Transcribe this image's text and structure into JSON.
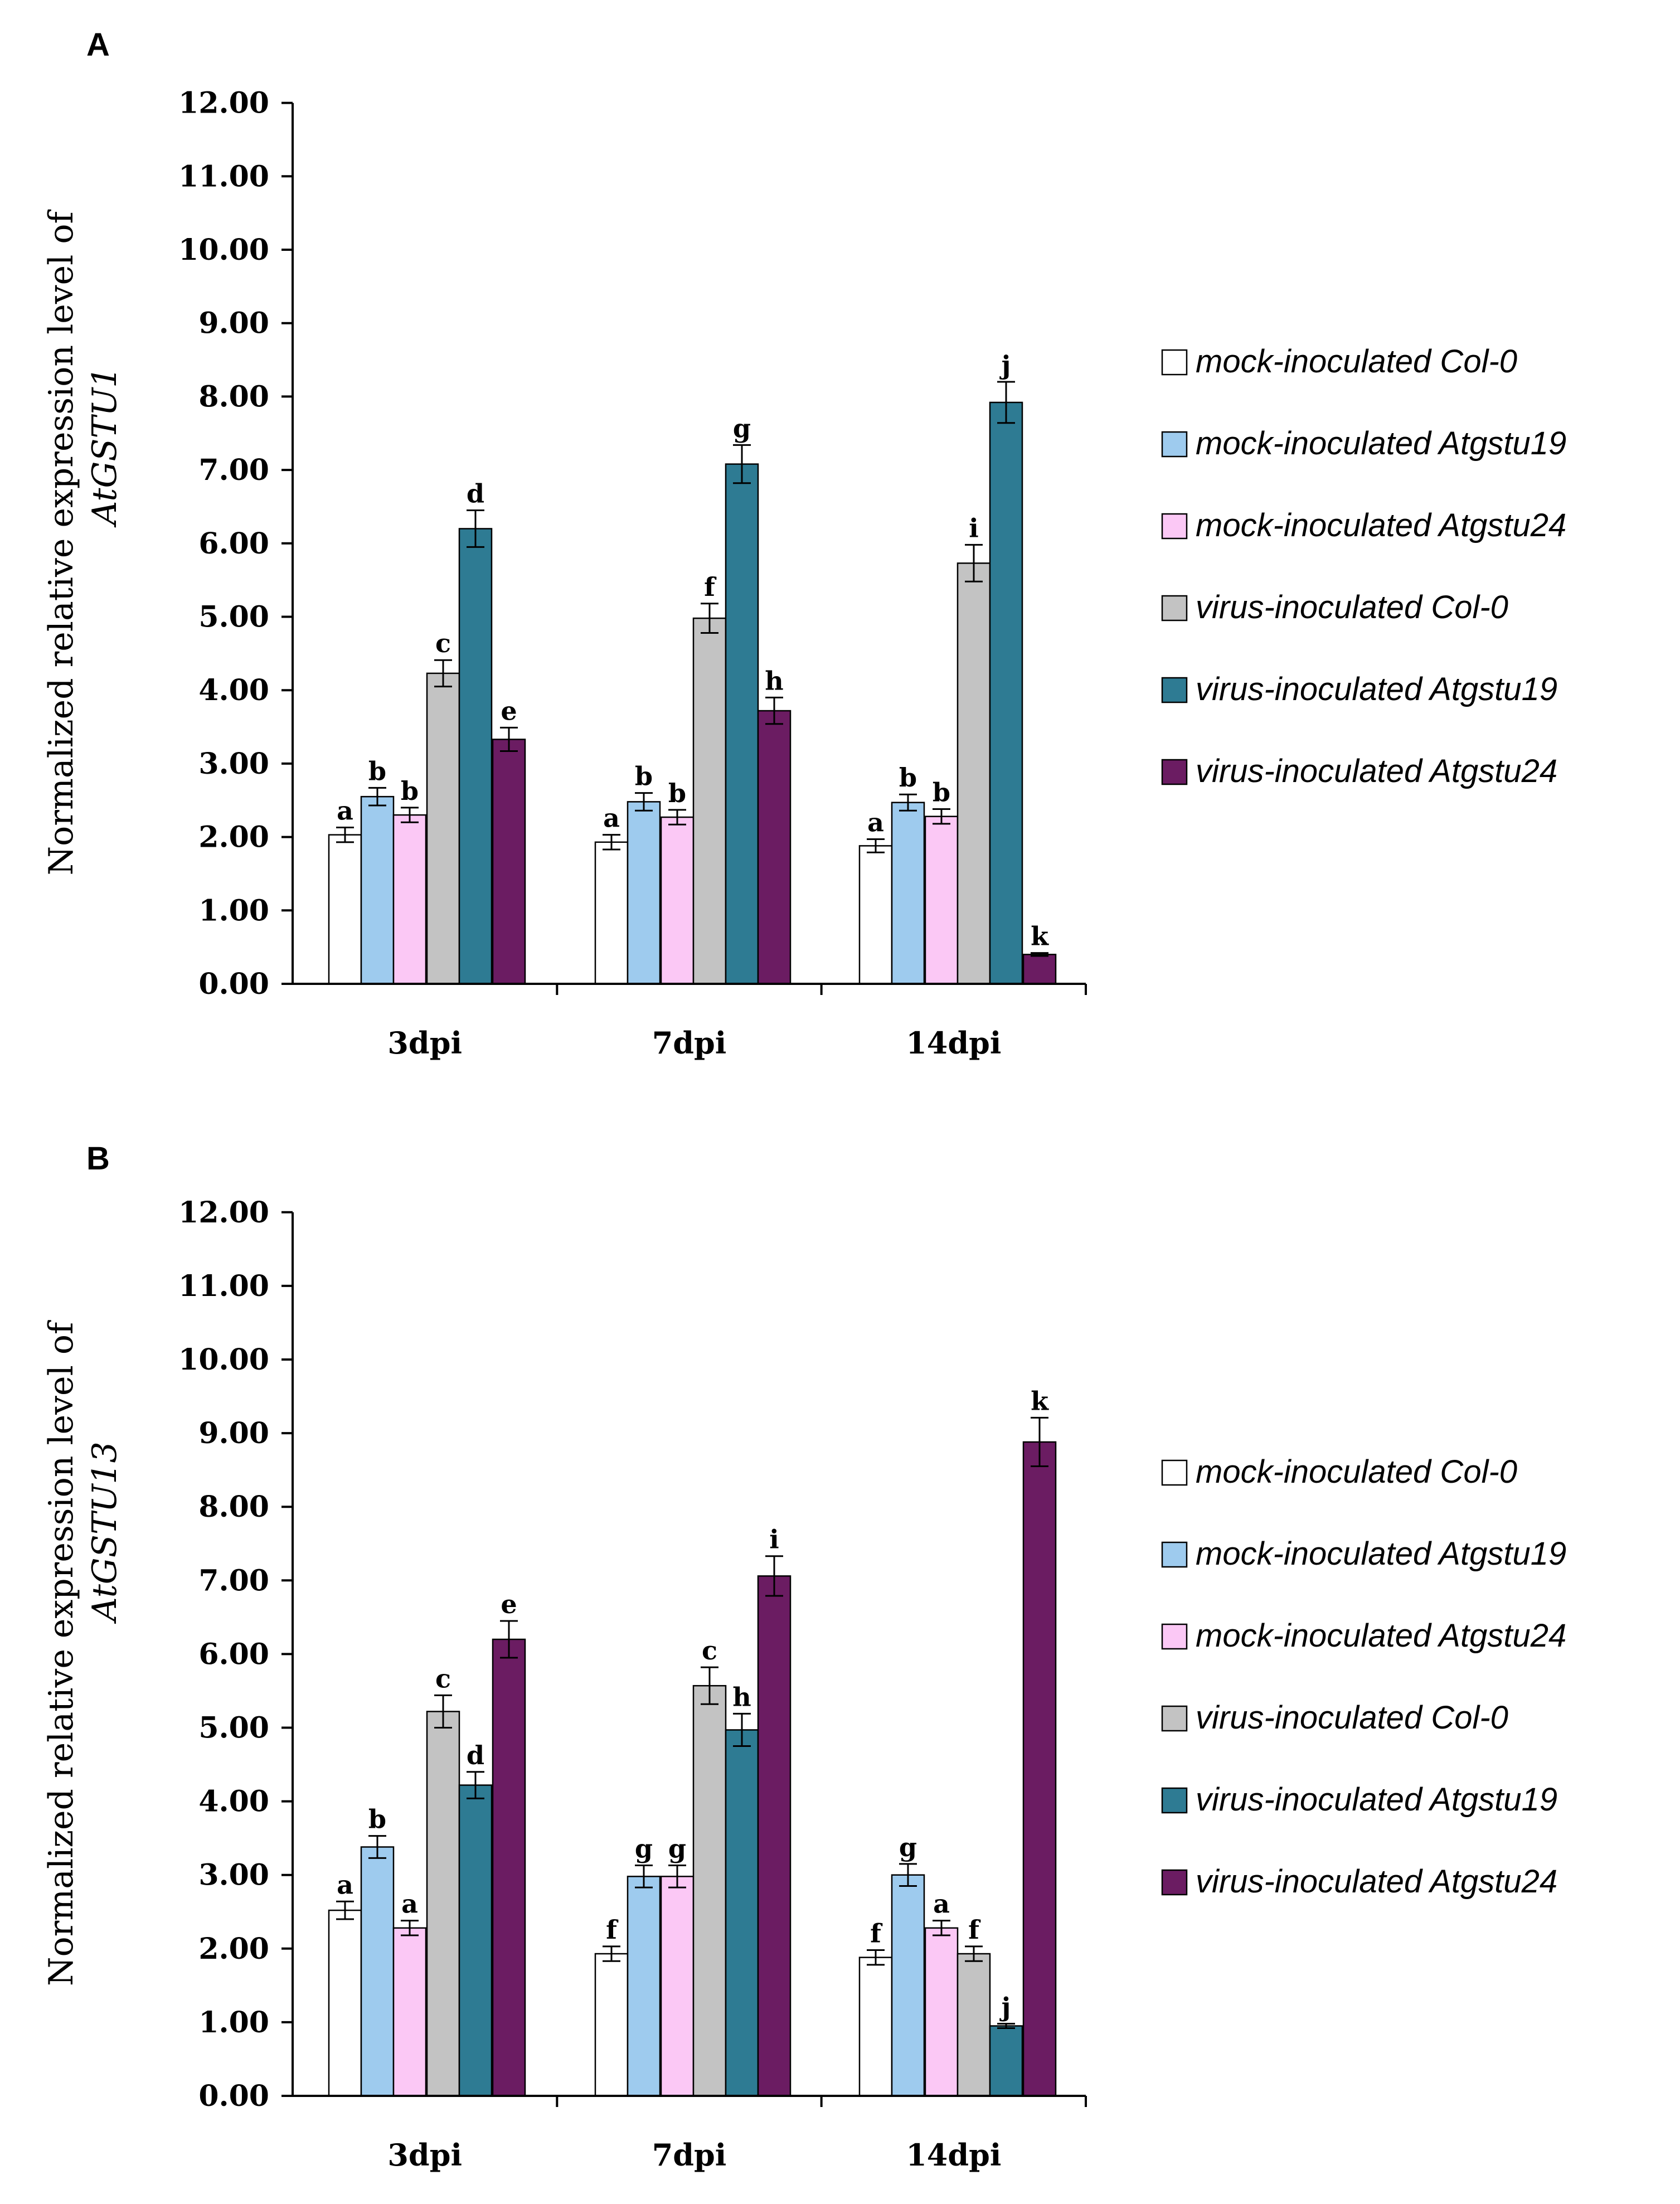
{
  "colors": {
    "mock_col0": "#ffffff",
    "mock_atgstu19": "#9ecbee",
    "mock_atgstu24": "#fbc8f5",
    "virus_col0": "#c3c3c3",
    "virus_atgstu19": "#2e7b93",
    "virus_atgstu24": "#6b1c62",
    "axis": "#000000"
  },
  "chart_data": [
    {
      "type": "bar",
      "panel_label": "A",
      "ylabel_line1": "Normalized relative expression level of",
      "ylabel_line2": "AtGSTU1",
      "ylim": [
        0,
        12
      ],
      "yticks": [
        "0.00",
        "1.00",
        "2.00",
        "3.00",
        "4.00",
        "5.00",
        "6.00",
        "7.00",
        "8.00",
        "9.00",
        "10.00",
        "11.00",
        "12.00"
      ],
      "categories": [
        "3dpi",
        "7dpi",
        "14dpi"
      ],
      "series": [
        {
          "name": "mock-inoculated Col-0",
          "color_key": "mock_col0",
          "values": [
            2.03,
            1.93,
            1.88
          ],
          "errors": [
            0.1,
            0.1,
            0.09
          ],
          "letters": [
            "a",
            "a",
            "a"
          ]
        },
        {
          "name": "mock-inoculated Atgstu19",
          "color_key": "mock_atgstu19",
          "values": [
            2.55,
            2.48,
            2.47
          ],
          "errors": [
            0.12,
            0.12,
            0.11
          ],
          "letters": [
            "b",
            "b",
            "b"
          ]
        },
        {
          "name": "mock-inoculated Atgstu24",
          "color_key": "mock_atgstu24",
          "values": [
            2.3,
            2.27,
            2.28
          ],
          "errors": [
            0.1,
            0.1,
            0.1
          ],
          "letters": [
            "b",
            "b",
            "b"
          ]
        },
        {
          "name": "virus-inoculated Col-0",
          "color_key": "virus_col0",
          "values": [
            4.23,
            4.98,
            5.73
          ],
          "errors": [
            0.18,
            0.2,
            0.25
          ],
          "letters": [
            "c",
            "f",
            "i"
          ]
        },
        {
          "name": "virus-inoculated Atgstu19",
          "color_key": "virus_atgstu19",
          "values": [
            6.2,
            7.08,
            7.92
          ],
          "errors": [
            0.25,
            0.26,
            0.28
          ],
          "letters": [
            "d",
            "g",
            "j"
          ]
        },
        {
          "name": "virus-inoculated Atgstu24",
          "color_key": "virus_atgstu24",
          "values": [
            3.33,
            3.72,
            0.4
          ],
          "errors": [
            0.16,
            0.18,
            0.02
          ],
          "letters": [
            "e",
            "h",
            "k"
          ]
        }
      ],
      "legend_position": "right"
    },
    {
      "type": "bar",
      "panel_label": "B",
      "ylabel_line1": "Normalized relative expression level of",
      "ylabel_line2": "AtGSTU13",
      "ylim": [
        0,
        12
      ],
      "yticks": [
        "0.00",
        "1.00",
        "2.00",
        "3.00",
        "4.00",
        "5.00",
        "6.00",
        "7.00",
        "8.00",
        "9.00",
        "10.00",
        "11.00",
        "12.00"
      ],
      "categories": [
        "3dpi",
        "7dpi",
        "14dpi"
      ],
      "series": [
        {
          "name": "mock-inoculated Col-0",
          "color_key": "mock_col0",
          "values": [
            2.52,
            1.93,
            1.88
          ],
          "errors": [
            0.12,
            0.1,
            0.1
          ],
          "letters": [
            "a",
            "f",
            "f"
          ]
        },
        {
          "name": "mock-inoculated Atgstu19",
          "color_key": "mock_atgstu19",
          "values": [
            3.38,
            2.98,
            3.0
          ],
          "errors": [
            0.15,
            0.15,
            0.15
          ],
          "letters": [
            "b",
            "g",
            "g"
          ]
        },
        {
          "name": "mock-inoculated Atgstu24",
          "color_key": "mock_atgstu24",
          "values": [
            2.28,
            2.98,
            2.28
          ],
          "errors": [
            0.1,
            0.15,
            0.1
          ],
          "letters": [
            "a",
            "g",
            "a"
          ]
        },
        {
          "name": "virus-inoculated Col-0",
          "color_key": "virus_col0",
          "values": [
            5.22,
            5.57,
            1.93
          ],
          "errors": [
            0.22,
            0.25,
            0.1
          ],
          "letters": [
            "c",
            "c",
            "f"
          ]
        },
        {
          "name": "virus-inoculated Atgstu19",
          "color_key": "virus_atgstu19",
          "values": [
            4.22,
            4.97,
            0.95
          ],
          "errors": [
            0.18,
            0.22,
            0.03
          ],
          "letters": [
            "d",
            "h",
            "j"
          ]
        },
        {
          "name": "virus-inoculated Atgstu24",
          "color_key": "virus_atgstu24",
          "values": [
            6.2,
            7.06,
            8.88
          ],
          "errors": [
            0.25,
            0.27,
            0.33
          ],
          "letters": [
            "e",
            "i",
            "k"
          ]
        }
      ],
      "legend_position": "right"
    }
  ]
}
